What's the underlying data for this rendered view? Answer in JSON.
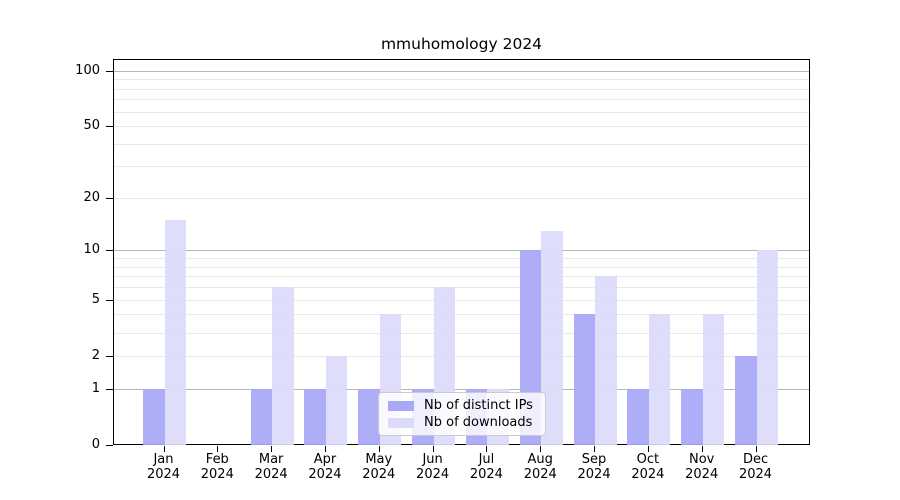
{
  "title": "mmuhomology 2024",
  "legend": {
    "items": [
      {
        "label": "Nb of distinct IPs",
        "color": "#a8a8f7"
      },
      {
        "label": "Nb of downloads",
        "color": "#dcdcfa"
      }
    ]
  },
  "chart_data": {
    "type": "bar",
    "title": "mmuhomology 2024",
    "categories": [
      "Jan",
      "Feb",
      "Mar",
      "Apr",
      "May",
      "Jun",
      "Jul",
      "Aug",
      "Sep",
      "Oct",
      "Nov",
      "Dec"
    ],
    "category_year": "2024",
    "series": [
      {
        "name": "Nb of distinct IPs",
        "color": "#a8a8f7",
        "values": [
          1,
          0,
          1,
          1,
          1,
          1,
          1,
          10,
          4,
          1,
          1,
          2
        ]
      },
      {
        "name": "Nb of downloads",
        "color": "#dcdcfa",
        "values": [
          15,
          0,
          6,
          2,
          4,
          6,
          1,
          13,
          7,
          4,
          4,
          10
        ]
      }
    ],
    "yscale": "log10(1+v)",
    "ylim": [
      0,
      115
    ],
    "yticks": [
      0,
      1,
      2,
      5,
      10,
      20,
      50,
      100
    ],
    "grid_major": [
      1,
      10,
      100
    ],
    "grid_minor": [
      2,
      3,
      4,
      5,
      6,
      7,
      8,
      9,
      20,
      30,
      40,
      50,
      60,
      70,
      80,
      90
    ],
    "grid": true,
    "legend_position": "lower center",
    "colors": {
      "grid_major": "#b6b6b6",
      "grid_minor": "#e9e9e9",
      "axis": "#000000"
    }
  }
}
